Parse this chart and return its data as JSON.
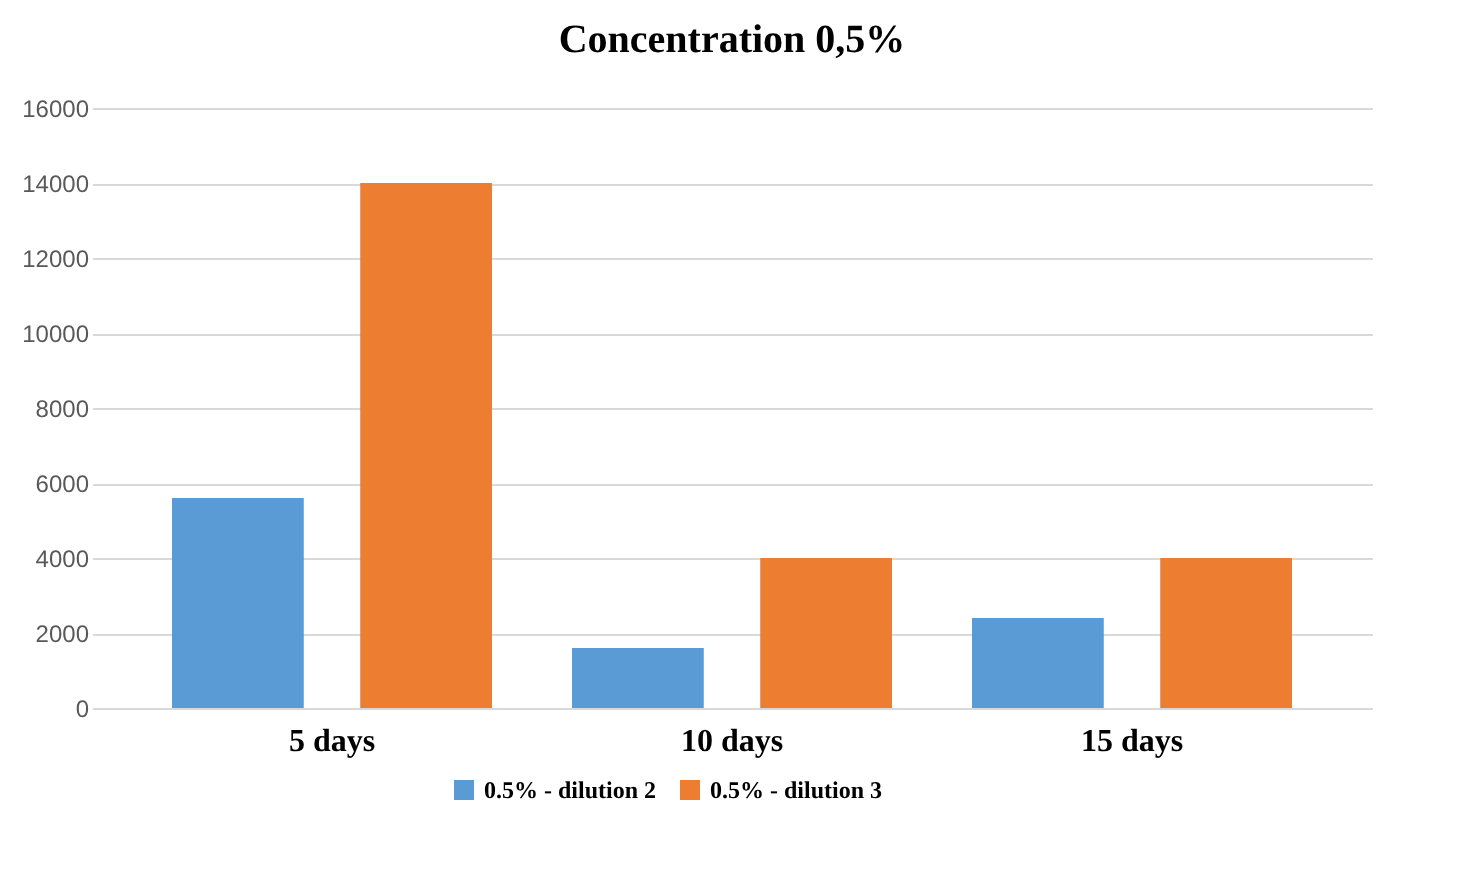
{
  "chart_data": {
    "type": "bar",
    "title": "Concentration 0,5%",
    "categories": [
      "5 days",
      "10 days",
      "15 days"
    ],
    "series": [
      {
        "name": "0.5% - dilution 2",
        "color": "#5b9bd5",
        "values": [
          5600,
          1600,
          2400
        ]
      },
      {
        "name": "0.5% - dilution 3",
        "color": "#ed7d31",
        "values": [
          14000,
          4000,
          4000
        ]
      }
    ],
    "ylim": [
      0,
      16000
    ],
    "yticks": [
      0,
      2000,
      4000,
      6000,
      8000,
      10000,
      12000,
      14000,
      16000
    ],
    "grid": "y",
    "legend": "bottom"
  }
}
